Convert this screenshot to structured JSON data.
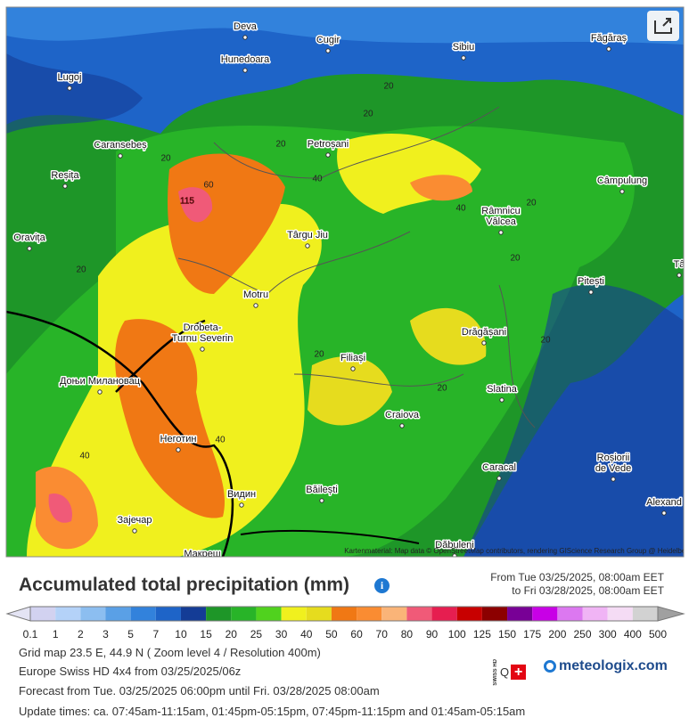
{
  "map": {
    "places": [
      [
        "Deva"
      ],
      [
        "Cugir"
      ],
      [
        "Sibiu"
      ],
      [
        "Făgăraș"
      ],
      [
        "Hunedoara"
      ],
      [
        "Lugoj"
      ],
      [
        "Caransebeș"
      ],
      [
        "Petroșani"
      ],
      [
        "Reșița"
      ],
      [
        "Câmpulung"
      ],
      [
        "Râmnicu",
        "Vâlcea"
      ],
      [
        "Oravița"
      ],
      [
        "Târgu Jiu"
      ],
      [
        "Pitești"
      ],
      [
        "Motru"
      ],
      [
        "Drobeta-",
        "Turnu Severin"
      ],
      [
        "Drăgășani"
      ],
      [
        "Доњи Милановац"
      ],
      [
        "Filiași"
      ],
      [
        "Slatina"
      ],
      [
        "Craiova"
      ],
      [
        "Неготин"
      ],
      [
        "Caracal"
      ],
      [
        "Roșiorii",
        "de Vede"
      ],
      [
        "Băilești"
      ],
      [
        "Видин"
      ],
      [
        "Зајечар"
      ],
      [
        "Alexand"
      ],
      [
        "Dăbuleni"
      ],
      [
        "Макреш"
      ],
      [
        "Tâ"
      ]
    ],
    "contour_labels": [
      115,
      60,
      40,
      40,
      40,
      40,
      20,
      20,
      20,
      20,
      20,
      20,
      20,
      20,
      20,
      20
    ],
    "attribution": "Kartenmaterial: Map data © OpenStreetMap contributors, rendering GIScience Research Group @ Heidelberg University"
  },
  "legend": {
    "title": "Accumulated total precipitation (mm)",
    "period_from": "From Tue 03/25/2025, 08:00am EET",
    "period_to": "to Fri 03/28/2025, 08:00am EET",
    "ticks": [
      0.1,
      1,
      2,
      3,
      5,
      7,
      10,
      15,
      20,
      25,
      30,
      40,
      50,
      60,
      70,
      80,
      90,
      100,
      125,
      150,
      175,
      200,
      250,
      300,
      400,
      500
    ],
    "under_color": "#e4e4f4",
    "colors": [
      "#d2d2f0",
      "#b4d2f8",
      "#8cbef0",
      "#5aa0e6",
      "#3282dc",
      "#1e64c8",
      "#143c96",
      "#1e9628",
      "#28b428",
      "#50d21e",
      "#f0f01e",
      "#e6dc1e",
      "#f07814",
      "#fa8c32",
      "#fab478",
      "#f05a78",
      "#e61e50",
      "#c80000",
      "#8c0000",
      "#780096",
      "#c800e6",
      "#dc78f0",
      "#f0b4f5",
      "#f5dcf5",
      "#d2d2d2"
    ],
    "over_color": "#a0a0a0"
  },
  "info": [
    "Grid map 23.5 E, 44.9 N  ( Zoom level 4 / Resolution 400m)",
    "Europe Swiss HD 4x4 from 03/25/2025/06z",
    "Forecast from Tue. 03/25/2025 06:00pm until Fri. 03/28/2025 08:00am",
    "Update times: ca. 07:45am-11:15am, 01:45pm-05:15pm, 07:45pm-11:15pm and 01:45am-05:15am"
  ],
  "branding": {
    "badge": "SWISS HD",
    "logo": "meteologix.com"
  }
}
